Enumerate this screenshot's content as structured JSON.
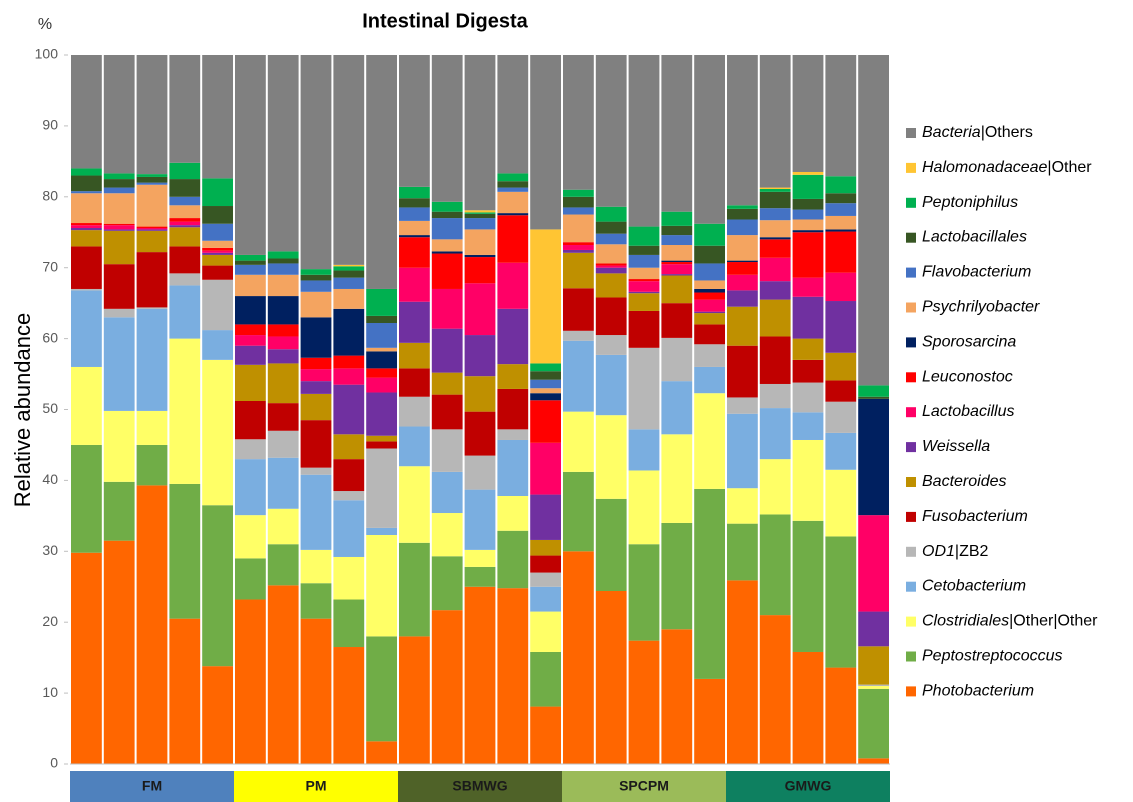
{
  "chart_data": {
    "type": "stacked_bar",
    "title": "Intestinal Digesta",
    "y_unit": "%",
    "y_label": "Relative  abundance",
    "ylim": [
      0,
      100
    ],
    "yticks": [
      0,
      10,
      20,
      30,
      40,
      50,
      60,
      70,
      80,
      90,
      100
    ],
    "categories": [
      null,
      null,
      null,
      null,
      null,
      null,
      null,
      null,
      null,
      null,
      null,
      null,
      null,
      null,
      null,
      null,
      null,
      null,
      null,
      null,
      null,
      null,
      null,
      null,
      null
    ],
    "groups": [
      {
        "label": "FM",
        "color": "#4f81bd",
        "bars": 5
      },
      {
        "label": "PM",
        "color": "#ffff00",
        "bars": 5
      },
      {
        "label": "SBMWG",
        "color": "#4f6228",
        "bars": 5
      },
      {
        "label": "SPCPM",
        "color": "#9bbb59",
        "bars": 5
      },
      {
        "label": "GMWG",
        "color": "#0e8060",
        "bars": 5
      }
    ],
    "series": [
      {
        "name": "Photobacterium",
        "color": "#ff6600",
        "values": [
          29.8,
          31.5,
          39.3,
          20.5,
          13.8,
          23.2,
          25.2,
          20.5,
          16.5,
          3.2,
          18,
          21.7,
          25,
          24.8,
          8.1,
          30,
          24.4,
          17.4,
          19,
          12,
          25.9,
          21,
          15.8,
          13.6,
          0.8
        ]
      },
      {
        "name": "Peptostreptococcus",
        "color": "#70ad47",
        "values": [
          15.2,
          8.3,
          5.7,
          19,
          22.7,
          5.8,
          5.8,
          5,
          6.7,
          14.8,
          13.2,
          7.6,
          2.8,
          8.1,
          7.7,
          11.2,
          13,
          13.6,
          15,
          26.8,
          8,
          14.2,
          18.5,
          18.5,
          9.8
        ]
      },
      {
        "name": "Clostridiales|Other|Other",
        "color": "#ffff66",
        "values": [
          11,
          10,
          4.8,
          20.5,
          20.5,
          6.1,
          5,
          4.7,
          6,
          14.3,
          10.8,
          6.1,
          2.4,
          4.9,
          5.7,
          8.5,
          11.8,
          10.4,
          12.5,
          13.5,
          5,
          7.8,
          11.4,
          9.4,
          0.4
        ]
      },
      {
        "name": "Cetobacterium",
        "color": "#7aaee0",
        "values": [
          10.8,
          13.2,
          14.4,
          7.5,
          4.2,
          7.9,
          7.2,
          10.6,
          8,
          1,
          5.6,
          5.8,
          8.5,
          7.9,
          3.5,
          10,
          8.5,
          5.8,
          7.5,
          3.7,
          10.5,
          7.2,
          3.9,
          5.2,
          0
        ]
      },
      {
        "name": "OD1|ZB2",
        "color": "#b7b7b7",
        "values": [
          0.2,
          1.2,
          0.2,
          1.7,
          7.1,
          2.8,
          3.8,
          1,
          1.3,
          11.2,
          4.2,
          6,
          4.8,
          1.5,
          2,
          1.4,
          2.8,
          11.5,
          6.1,
          3.2,
          2.3,
          3.4,
          4.2,
          4.4,
          0.2
        ]
      },
      {
        "name": "Fusobacterium",
        "color": "#c00000",
        "values": [
          6,
          6.3,
          7.8,
          3.8,
          2,
          5.4,
          3.9,
          6.7,
          4.5,
          1,
          4,
          4.9,
          6.2,
          5.7,
          2.4,
          6,
          5.3,
          5.2,
          4.9,
          2.8,
          7.3,
          6.7,
          3.2,
          3,
          0
        ]
      },
      {
        "name": "Bacteroides",
        "color": "#bf9000",
        "values": [
          2.3,
          4.7,
          3,
          2.7,
          1.5,
          5.1,
          5.6,
          3.7,
          3.5,
          0.8,
          3.6,
          3.1,
          5,
          3.5,
          2.2,
          5,
          3.4,
          2.5,
          3.9,
          1.6,
          5.5,
          5.2,
          3,
          3.9,
          5.4
        ]
      },
      {
        "name": "Weissella",
        "color": "#7030a0",
        "values": [
          0.3,
          0.2,
          0.2,
          0.3,
          0.3,
          2.7,
          2,
          1.8,
          7,
          6.1,
          5.8,
          6.2,
          5.8,
          7.8,
          6.4,
          0.4,
          0.8,
          0.2,
          0.2,
          0.2,
          2.3,
          2.6,
          5.9,
          7.3,
          4.9
        ]
      },
      {
        "name": "Lactobacillus",
        "color": "#ff0066",
        "values": [
          0.4,
          0.6,
          0.2,
          0.5,
          0.3,
          1.5,
          1.8,
          1.7,
          2.3,
          2.1,
          4.8,
          5.6,
          7.3,
          6.5,
          7.3,
          0.7,
          0.3,
          1.5,
          1.4,
          1.7,
          2.2,
          3.3,
          2.7,
          4,
          13.6
        ]
      },
      {
        "name": "Leuconostoc",
        "color": "#ff0000",
        "values": [
          0.3,
          0.2,
          0.2,
          0.5,
          0.4,
          1.5,
          1.7,
          1.6,
          1.8,
          1.3,
          4.3,
          5,
          3.7,
          6.7,
          6,
          0.4,
          0.3,
          0.3,
          0.3,
          1,
          1.8,
          2.6,
          6.4,
          5.8,
          0
        ]
      },
      {
        "name": "Sporosarcina",
        "color": "#002060",
        "values": [
          0,
          0,
          0,
          0,
          0,
          4,
          4,
          5.7,
          6.6,
          2.4,
          0.3,
          0.3,
          0.3,
          0.3,
          1,
          0,
          0,
          0,
          0.2,
          0.5,
          0.2,
          0.3,
          0.3,
          0.3,
          16.4
        ]
      },
      {
        "name": "Psychrilyobacter",
        "color": "#f4a460",
        "values": [
          4.2,
          4.3,
          5.9,
          1.8,
          1,
          3,
          3,
          3.6,
          2.8,
          0.5,
          2,
          1.7,
          3.6,
          3,
          0.7,
          3.9,
          2.7,
          1.6,
          2.2,
          1.2,
          3.6,
          2.4,
          1.5,
          1.9,
          0
        ]
      },
      {
        "name": "Flavobacterium",
        "color": "#4472c4",
        "values": [
          0.3,
          0.8,
          0.3,
          1.2,
          2.4,
          1.4,
          1.6,
          1.6,
          1.6,
          3.5,
          1.9,
          3,
          1.6,
          0.6,
          1.2,
          1,
          1.5,
          1.8,
          1.4,
          2.4,
          2.2,
          1.7,
          1.4,
          1.8,
          0
        ]
      },
      {
        "name": "Lactobacillales",
        "color": "#375623",
        "values": [
          2.2,
          1.2,
          0.8,
          2.5,
          2.5,
          0.6,
          0.7,
          0.8,
          1,
          1,
          1.3,
          0.9,
          0.6,
          0.9,
          1.2,
          1.5,
          1.7,
          1.3,
          1.3,
          2.5,
          1.5,
          2.3,
          1.5,
          1.4,
          0.3
        ]
      },
      {
        "name": "Peptoniphilus",
        "color": "#00b050",
        "values": [
          1,
          0.8,
          0.4,
          2.3,
          3.9,
          0.8,
          1,
          0.8,
          0.6,
          3.8,
          1.6,
          1.4,
          0.2,
          1.1,
          1.1,
          1,
          2.1,
          2.7,
          2,
          3.1,
          0.5,
          0.4,
          3.4,
          2.4,
          1.6
        ]
      },
      {
        "name": "Halomonadaceae|Other",
        "color": "#ffc533",
        "values": [
          0,
          0,
          0,
          0,
          0,
          0,
          0,
          0,
          0.2,
          0,
          0,
          0,
          0.3,
          0,
          18.9,
          0,
          0,
          0,
          0,
          0,
          0,
          0.2,
          0.4,
          0,
          0
        ]
      },
      {
        "name": "Bacteria|Others",
        "color": "#808080",
        "values": [
          16,
          16.7,
          16.8,
          15.2,
          17.4,
          28.2,
          27.7,
          30.2,
          29.6,
          33,
          18.6,
          20.7,
          21.9,
          16.7,
          24.6,
          19,
          21.4,
          24.2,
          22.1,
          23.8,
          21.2,
          18.7,
          16.5,
          17.1,
          46.6
        ]
      }
    ]
  }
}
